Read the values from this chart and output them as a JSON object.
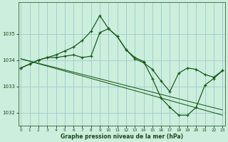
{
  "title": "Graphe pression niveau de la mer (hPa)",
  "background_color": "#cceedd",
  "grid_color": "#99cccc",
  "line_color": "#1a5c1a",
  "x_ticks": [
    0,
    1,
    2,
    3,
    4,
    5,
    6,
    7,
    8,
    9,
    10,
    11,
    12,
    13,
    14,
    15,
    16,
    17,
    18,
    19,
    20,
    21,
    22,
    23
  ],
  "ylim": [
    1031.5,
    1036.2
  ],
  "y_ticks": [
    1032,
    1033,
    1034,
    1035
  ],
  "series": [
    {
      "x": [
        0,
        1,
        2,
        3,
        4,
        5,
        6,
        7,
        8,
        9,
        10,
        11,
        12,
        13,
        14,
        15,
        16,
        17,
        18,
        19,
        20,
        21,
        22,
        23
      ],
      "y": [
        1033.7,
        1033.85,
        1034.0,
        1034.1,
        1034.2,
        1034.35,
        1034.5,
        1034.75,
        1035.1,
        1035.7,
        1035.2,
        1034.9,
        1034.4,
        1034.1,
        1033.95,
        1033.3,
        1032.55,
        1032.2,
        1031.9,
        1031.9,
        1032.2,
        1033.05,
        1033.3,
        1033.6
      ],
      "marker": true,
      "linestyle": "-"
    },
    {
      "x": [
        0,
        1,
        2,
        3,
        4,
        5,
        6,
        7,
        8,
        9,
        10,
        11,
        12,
        13,
        14,
        15,
        16,
        17,
        18,
        19,
        20,
        21,
        22,
        23
      ],
      "y": [
        1033.7,
        1033.85,
        1034.0,
        1034.1,
        1034.1,
        1034.15,
        1034.2,
        1034.1,
        1034.15,
        1035.05,
        1035.2,
        1034.9,
        1034.4,
        1034.05,
        1033.9,
        1033.65,
        1033.2,
        1032.8,
        1033.5,
        1033.7,
        1033.65,
        1033.45,
        1033.35,
        1033.6
      ],
      "marker": true,
      "linestyle": "-"
    },
    {
      "x": [
        0,
        23
      ],
      "y": [
        1034.05,
        1031.9
      ],
      "marker": false,
      "linestyle": "-"
    },
    {
      "x": [
        0,
        23
      ],
      "y": [
        1034.05,
        1032.1
      ],
      "marker": false,
      "linestyle": "-"
    }
  ]
}
